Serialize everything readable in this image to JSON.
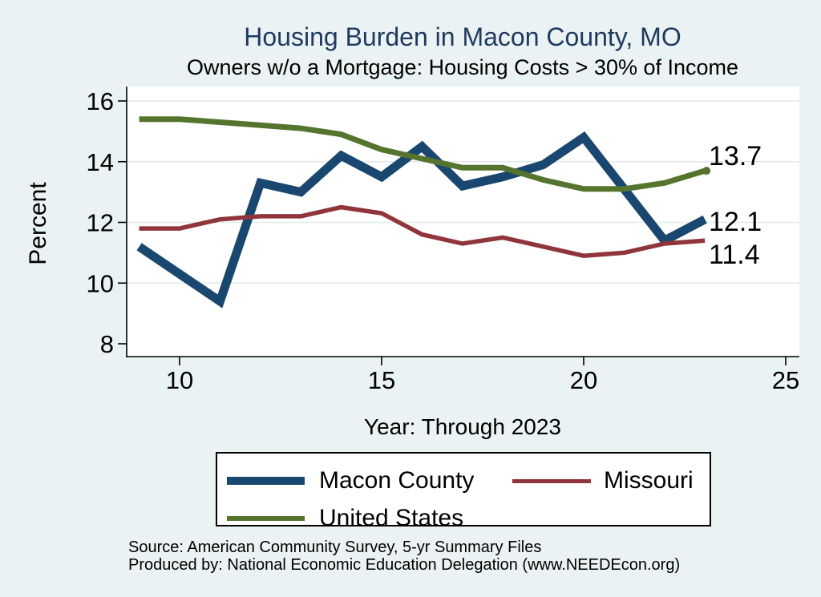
{
  "figure": {
    "title": "Housing Burden in Macon County, MO",
    "subtitle": "Owners w/o a Mortgage: Housing Costs > 30% of Income",
    "x_axis_title": "Year: Through 2023",
    "y_axis_title": "Percent",
    "source_line1": "Source: American Community Survey, 5-yr Summary Files",
    "source_line2": "Produced by: National Economic Education Delegation (www.NEEDEcon.org)",
    "colors": {
      "background": "#eaf2f3",
      "plot_background": "#ffffff",
      "gridline": "#dfeaec",
      "axis": "#000000",
      "title": "#1e3a5f"
    }
  },
  "chart_data": {
    "type": "line",
    "title": "Housing Burden in Macon County, MO",
    "subtitle": "Owners w/o a Mortgage: Housing Costs > 30% of Income",
    "xlabel": "Year: Through 2023",
    "ylabel": "Percent",
    "x": [
      9,
      10,
      11,
      12,
      13,
      14,
      15,
      16,
      17,
      18,
      19,
      20,
      21,
      22,
      23
    ],
    "x_ticks": [
      10,
      15,
      20,
      25
    ],
    "y_ticks": [
      8,
      10,
      12,
      14,
      16
    ],
    "xlim": [
      8.7,
      25.35
    ],
    "ylim": [
      7.55,
      16.5
    ],
    "grid": "horizontal-at-y-ticks-10-to-16",
    "legend_position": "below",
    "series": [
      {
        "name": "Macon County",
        "color": "#1a476f",
        "line_width": 11,
        "values": [
          11.2,
          10.3,
          9.4,
          13.3,
          13.0,
          14.2,
          13.5,
          14.5,
          13.2,
          13.5,
          13.9,
          14.8,
          13.1,
          11.4,
          12.1
        ]
      },
      {
        "name": "Missouri",
        "color": "#90353b",
        "line_width": 5.5,
        "values": [
          11.8,
          11.8,
          12.1,
          12.2,
          12.2,
          12.5,
          12.3,
          11.6,
          11.3,
          11.5,
          11.2,
          10.9,
          11.0,
          11.3,
          11.4
        ]
      },
      {
        "name": "United States",
        "color": "#55752f",
        "line_width": 7,
        "end_marker": true,
        "values": [
          15.4,
          15.4,
          15.3,
          15.2,
          15.1,
          14.9,
          14.4,
          14.1,
          13.8,
          13.8,
          13.4,
          13.1,
          13.1,
          13.3,
          13.7
        ]
      }
    ],
    "end_labels": [
      {
        "text": "13.7",
        "value": 13.7,
        "series": "United States"
      },
      {
        "text": "12.1",
        "value": 12.1,
        "series": "Macon County"
      },
      {
        "text": "11.4",
        "value": 11.4,
        "series": "Missouri"
      }
    ]
  },
  "legend": {
    "items": [
      {
        "label": "Macon County",
        "color": "#1a476f",
        "swatch_width": 97,
        "swatch_height": 10
      },
      {
        "label": "Missouri",
        "color": "#90353b",
        "swatch_width": 98,
        "swatch_height": 5
      },
      {
        "label": "United States",
        "color": "#55752f",
        "swatch_width": 97,
        "swatch_height": 6
      }
    ]
  }
}
